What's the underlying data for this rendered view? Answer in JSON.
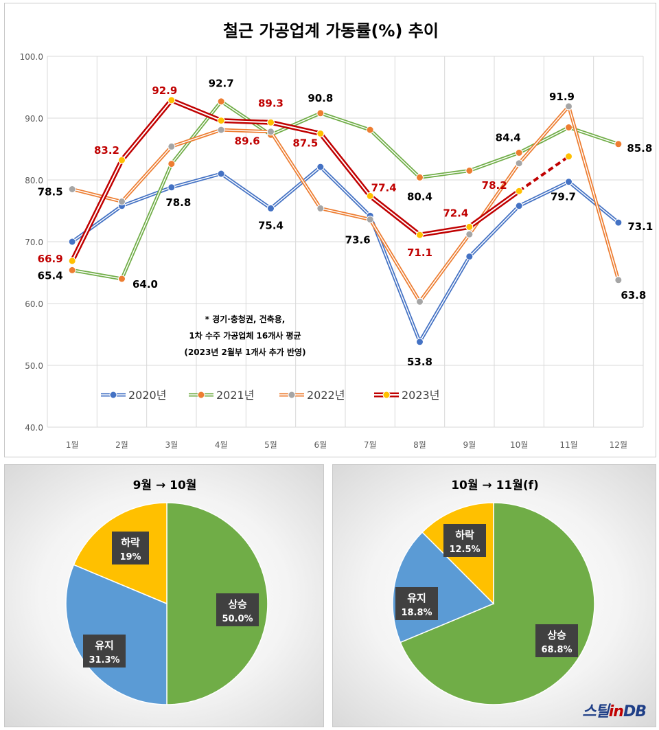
{
  "chart_data": [
    {
      "type": "line",
      "title": "철근 가공업계 가동률(%) 추이",
      "categories": [
        "1월",
        "2월",
        "3월",
        "4월",
        "5월",
        "6월",
        "7월",
        "8월",
        "9월",
        "10월",
        "11월",
        "12월"
      ],
      "ylim": [
        40,
        100
      ],
      "yticks": [
        "40.0",
        "50.0",
        "60.0",
        "70.0",
        "80.0",
        "90.0",
        "100.0"
      ],
      "grid": true,
      "legend_position": "bottom-left inside",
      "series": [
        {
          "name": "2020년",
          "values": [
            70.0,
            75.8,
            78.8,
            81.0,
            75.4,
            82.1,
            74.2,
            53.8,
            67.6,
            75.8,
            79.7,
            73.1
          ],
          "line_color": "#4472c4",
          "marker_color": "#4472c4"
        },
        {
          "name": "2021년",
          "values": [
            65.4,
            64.0,
            82.6,
            92.7,
            87.3,
            90.8,
            88.1,
            80.4,
            81.5,
            84.4,
            88.5,
            85.8
          ],
          "line_color": "#70ad47",
          "marker_color": "#ed7d31"
        },
        {
          "name": "2022년",
          "values": [
            78.5,
            76.5,
            85.4,
            88.1,
            87.8,
            75.4,
            73.6,
            60.3,
            71.2,
            82.7,
            91.9,
            63.8
          ],
          "line_color": "#ed7d31",
          "marker_color": "#a5a5a5"
        },
        {
          "name": "2023년",
          "values": [
            66.9,
            83.2,
            92.9,
            89.6,
            89.3,
            87.5,
            77.4,
            71.1,
            72.4,
            78.2,
            83.8,
            null
          ],
          "line_color": "#c00000",
          "marker_color": "#ffc000",
          "forecast_from_index": 9
        }
      ],
      "labels": [
        {
          "text": "78.5",
          "series": "2022년",
          "index": 0,
          "color": "#000000"
        },
        {
          "text": "66.9",
          "series": "2023년",
          "index": 0,
          "color": "#c00000"
        },
        {
          "text": "65.4",
          "series": "2021년",
          "index": 0,
          "color": "#000000"
        },
        {
          "text": "83.2",
          "series": "2023년",
          "index": 1,
          "color": "#c00000"
        },
        {
          "text": "64.0",
          "series": "2021년",
          "index": 1,
          "color": "#000000"
        },
        {
          "text": "92.9",
          "series": "2023년",
          "index": 2,
          "color": "#c00000"
        },
        {
          "text": "78.8",
          "series": "2020년",
          "index": 2,
          "color": "#000000"
        },
        {
          "text": "92.7",
          "series": "2021년",
          "index": 3,
          "color": "#000000"
        },
        {
          "text": "89.6",
          "series": "2023년",
          "index": 3,
          "color": "#c00000"
        },
        {
          "text": "89.3",
          "series": "2023년",
          "index": 4,
          "color": "#c00000"
        },
        {
          "text": "75.4",
          "series": "2020년",
          "index": 4,
          "color": "#000000"
        },
        {
          "text": "90.8",
          "series": "2021년",
          "index": 5,
          "color": "#000000"
        },
        {
          "text": "87.5",
          "series": "2023년",
          "index": 5,
          "color": "#c00000"
        },
        {
          "text": "77.4",
          "series": "2023년",
          "index": 6,
          "color": "#c00000"
        },
        {
          "text": "73.6",
          "series": "2022년",
          "index": 6,
          "color": "#000000"
        },
        {
          "text": "80.4",
          "series": "2021년",
          "index": 7,
          "color": "#000000"
        },
        {
          "text": "71.1",
          "series": "2023년",
          "index": 7,
          "color": "#c00000"
        },
        {
          "text": "53.8",
          "series": "2020년",
          "index": 7,
          "color": "#000000"
        },
        {
          "text": "72.4",
          "series": "2023년",
          "index": 8,
          "color": "#c00000"
        },
        {
          "text": "84.4",
          "series": "2021년",
          "index": 9,
          "color": "#000000"
        },
        {
          "text": "78.2",
          "series": "2023년",
          "index": 9,
          "color": "#c00000"
        },
        {
          "text": "91.9",
          "series": "2022년",
          "index": 10,
          "color": "#000000"
        },
        {
          "text": "79.7",
          "series": "2020년",
          "index": 10,
          "color": "#000000"
        },
        {
          "text": "85.8",
          "series": "2021년",
          "index": 11,
          "color": "#000000"
        },
        {
          "text": "73.1",
          "series": "2020년",
          "index": 11,
          "color": "#000000"
        },
        {
          "text": "63.8",
          "series": "2022년",
          "index": 11,
          "color": "#000000"
        }
      ],
      "annotation": [
        "* 경기·충청권, 건축용,",
        "1차 수주 가공업체 16개사 평균",
        "(2023년 2월부 1개사 추가 반영)"
      ]
    },
    {
      "type": "pie",
      "title": "9월 → 10월",
      "slices": [
        {
          "label": "상승",
          "value": 50.0,
          "text": "50.0%",
          "color": "#70ad47"
        },
        {
          "label": "유지",
          "value": 31.3,
          "text": "31.3%",
          "color": "#5b9bd5"
        },
        {
          "label": "하락",
          "value": 18.7,
          "text": "19%",
          "color": "#ffc000"
        }
      ]
    },
    {
      "type": "pie",
      "title": "10월 → 11월(f)",
      "slices": [
        {
          "label": "상승",
          "value": 68.8,
          "text": "68.8%",
          "color": "#70ad47"
        },
        {
          "label": "유지",
          "value": 18.8,
          "text": "18.8%",
          "color": "#5b9bd5"
        },
        {
          "label": "하락",
          "value": 12.5,
          "text": "12.5%",
          "color": "#ffc000"
        }
      ]
    }
  ],
  "watermark": {
    "text": "스틸inDB"
  }
}
